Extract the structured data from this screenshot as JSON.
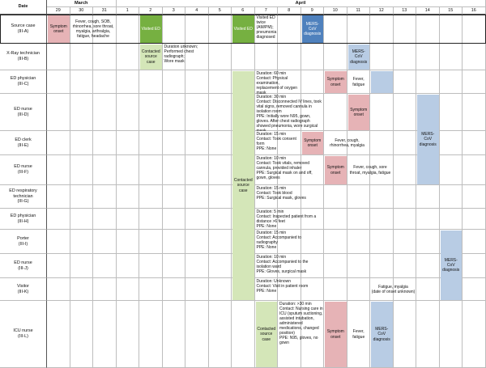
{
  "header": {
    "date_label": "Date",
    "months": [
      {
        "label": "March"
      },
      {
        "label": "April"
      }
    ],
    "days": [
      "29",
      "30",
      "31",
      "1",
      "2",
      "3",
      "4",
      "5",
      "6",
      "7",
      "8",
      "9",
      "10",
      "11",
      "12",
      "13",
      "14",
      "15",
      "16"
    ]
  },
  "rows": [
    {
      "label": "Source case\n(III-A)"
    },
    {
      "label": "X-Ray technician\n(III-B)"
    },
    {
      "label": "ED physician\n(III-C)"
    },
    {
      "label": "ED nurse\n(III-D)"
    },
    {
      "label": "ED clerk\n(III-E)"
    },
    {
      "label": "ED nurse\n(III-F)"
    },
    {
      "label": "ED respiratory technician\n(III-G)"
    },
    {
      "label": "ED physician\n(III-H)"
    },
    {
      "label": "Porter\n(III-I)"
    },
    {
      "label": "ED nurse\n(III-J)"
    },
    {
      "label": "Visitor\n(III-K)"
    },
    {
      "label": "ICU nurse\n(III-L)"
    }
  ],
  "events": [
    {
      "name": "source-symptom-onset",
      "text": "Symptom onset",
      "row": 0,
      "start": 0,
      "end": 0,
      "color": "pink",
      "kind": "box"
    },
    {
      "name": "source-symptoms",
      "text": "Fever, cough, SOB, rhinorrhea, sore throat, myalgia, arthralgia, fatigue, headache",
      "row": 0,
      "start": 1,
      "end": 2,
      "kind": "text"
    },
    {
      "name": "source-visited-ed-1",
      "text": "Visited ED",
      "row": 0,
      "start": 4,
      "end": 4,
      "color": "dgreen",
      "kind": "box"
    },
    {
      "name": "source-visited-ed-2",
      "text": "Visited ED",
      "row": 0,
      "start": 8,
      "end": 8,
      "color": "dgreen",
      "kind": "box"
    },
    {
      "name": "source-visited-ed-twice",
      "text": "Visited ED twice (AM/PM); pneumonia diagnosed",
      "row": 0,
      "start": 9,
      "end": 9,
      "kind": "note"
    },
    {
      "name": "source-mers-diagnosis",
      "text": "MERS-CoV diagnosis",
      "row": 0,
      "start": 11,
      "end": 11,
      "color": "dblue",
      "kind": "box"
    },
    {
      "name": "b-contacted-source",
      "text": "Contacted source case",
      "row": 1,
      "start": 4,
      "end": 4,
      "color": "green",
      "kind": "box"
    },
    {
      "name": "b-contact-note",
      "text": "Duration unknown;\nPerformed chest radiograph;\nWore mask",
      "row": 1,
      "start": 5,
      "end": 6,
      "kind": "note"
    },
    {
      "name": "b-mers-diagnosis",
      "text": "MERS-CoV diagnosis",
      "row": 1,
      "start": 13,
      "end": 13,
      "color": "blue",
      "kind": "box"
    },
    {
      "name": "c-contact-note",
      "text": "Duration: 60 min\nContact: Physical examination, replacement of oxygen mask\nPPE: None",
      "row": 2,
      "start": 9,
      "end": 10,
      "kind": "note"
    },
    {
      "name": "c-symptom-onset",
      "text": "Symptom onset",
      "row": 2,
      "start": 12,
      "end": 12,
      "color": "pink",
      "kind": "box"
    },
    {
      "name": "c-symptoms",
      "text": "Fever, fatigue",
      "row": 2,
      "start": 13,
      "end": 13,
      "kind": "text"
    },
    {
      "name": "c-mers-diagnosis",
      "text": "",
      "row": 2,
      "start": 14,
      "end": 14,
      "color": "blue",
      "kind": "box"
    },
    {
      "name": "d-contact-note",
      "text": "Duration: 30 min\nContact: Disconnected IV lines, took vital signs, removed cannula in isolation room\nPPE: Initially wore N95, gown, gloves. After chest radiograph showed pneumonia, wore surgical mask",
      "row": 3,
      "start": 9,
      "end": 11,
      "kind": "note"
    },
    {
      "name": "d-symptom-onset",
      "text": "Symptom onset",
      "row": 3,
      "start": 13,
      "end": 13,
      "color": "pink",
      "kind": "box"
    },
    {
      "name": "e-contact-note",
      "text": "Duration: 15 min\nContact: Took consent form\nPPE: None",
      "row": 4,
      "start": 9,
      "end": 10,
      "kind": "note"
    },
    {
      "name": "e-symptom-onset",
      "text": "Symptom onset",
      "row": 4,
      "start": 11,
      "end": 11,
      "color": "pink",
      "kind": "box"
    },
    {
      "name": "e-symptoms",
      "text": "Fever, cough, rhinorrhea, myalgia",
      "row": 4,
      "start": 12,
      "end": 13,
      "kind": "text"
    },
    {
      "name": "f-contact-note",
      "text": "Duration: 10 min\nContact: Took vitals, removed cannula, provided inhaler\nPPE: Surgical mask on and off, gown, gloves",
      "row": 5,
      "start": 9,
      "end": 11,
      "kind": "note"
    },
    {
      "name": "f-symptom-onset",
      "text": "Symptom onset",
      "row": 5,
      "start": 12,
      "end": 12,
      "color": "pink",
      "kind": "box"
    },
    {
      "name": "f-symptoms",
      "text": "Fever, cough, sore throat, myalgia, fatigue",
      "row": 5,
      "start": 13,
      "end": 14,
      "kind": "text"
    },
    {
      "name": "g-contact-note",
      "text": "Duration: 15 min\nContact: Took blood\nPPE: Surgical mask, gloves",
      "row": 6,
      "start": 9,
      "end": 11,
      "kind": "note"
    },
    {
      "name": "h-contact-note",
      "text": "Duration: 5 min\nContact: Inspected patient from a distance >6 feet\nPPE: None",
      "row": 7,
      "start": 9,
      "end": 11,
      "kind": "note"
    },
    {
      "name": "i-contact-note",
      "text": "Duration: 15 min\nContact: Accompanied to radiography\nPPE: None",
      "row": 8,
      "start": 9,
      "end": 11,
      "kind": "note"
    },
    {
      "name": "j-contact-note",
      "text": "Duration: 10 min\nContact: Accompanied to the isolation ward\nPPE: Gloves, surgical mask",
      "row": 9,
      "start": 9,
      "end": 11,
      "kind": "note"
    },
    {
      "name": "k-contact-note",
      "text": "Duration: Unknown\nContact: Visit in patient room\nPPE: None",
      "row": 10,
      "start": 9,
      "end": 11,
      "kind": "note"
    },
    {
      "name": "k-symptoms",
      "text": "Fatigue, myalgia\n(date of onset unknown)",
      "row": 10,
      "start": 13,
      "end": 16,
      "kind": "text"
    },
    {
      "name": "l-contacted-source",
      "text": "Contacted source case",
      "row": 11,
      "start": 9,
      "end": 9,
      "color": "green",
      "kind": "box"
    },
    {
      "name": "l-contact-note",
      "text": "Duration: >30 min\nContact: Nursing care in ICU (sputum suctioning, assisted intubation, administered medications, changed position)\nPPE: N95, gloves, no gown",
      "row": 11,
      "start": 10,
      "end": 11,
      "kind": "note"
    },
    {
      "name": "l-symptom-onset",
      "text": "Symptom onset",
      "row": 11,
      "start": 12,
      "end": 12,
      "color": "pink",
      "kind": "box"
    },
    {
      "name": "l-symptoms",
      "text": "Fever, fatigue",
      "row": 11,
      "start": 13,
      "end": 13,
      "kind": "text"
    },
    {
      "name": "l-mers-diagnosis",
      "text": "MERS-CoV diagnosis",
      "row": 11,
      "start": 14,
      "end": 14,
      "color": "blue",
      "kind": "box"
    }
  ],
  "spans": [
    {
      "name": "ed-contacted-source-span",
      "text": "Contacted source case",
      "start_row": 2,
      "end_row": 10,
      "col": 8,
      "color": "green"
    },
    {
      "name": "d-f-mers-diagnosis-span",
      "text": "MERS-CoV diagnosis",
      "start_row": 3,
      "end_row": 5,
      "col": 16,
      "color": "blue"
    },
    {
      "name": "i-j-mers-diagnosis-span",
      "text": "MERS-CoV diagnosis",
      "start_row": 8,
      "end_row": 10,
      "col": 17,
      "color": "blue"
    }
  ]
}
